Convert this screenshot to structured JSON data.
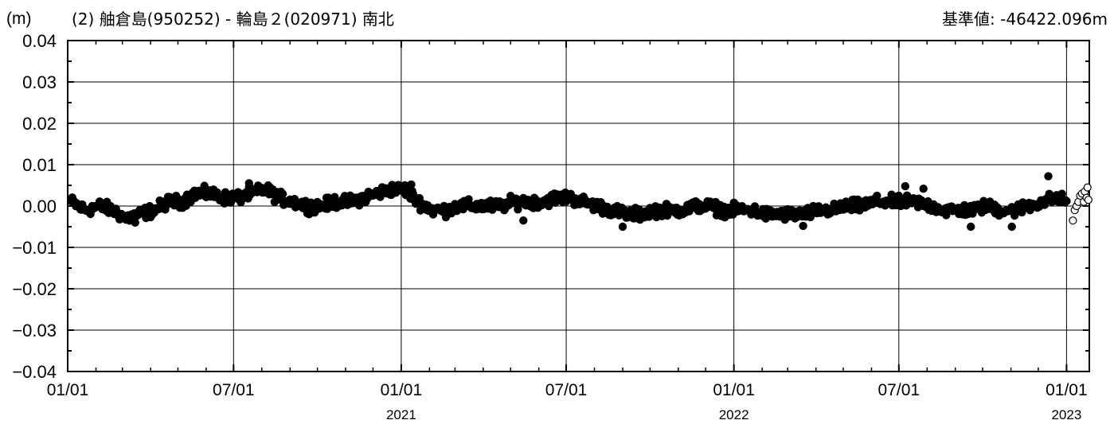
{
  "header": {
    "unit": "(m)",
    "title": "(2) 舳倉島(950252) - 輪島２(020971) 南北",
    "baseline": "基準値: -46422.096m"
  },
  "chart_data": {
    "type": "scatter",
    "title": "(2) 舳倉島(950252) - 輪島２(020971) 南北",
    "ylabel": "(m)",
    "xlim": [
      "2020-01-01",
      "2023-01-26"
    ],
    "ylim": [
      -0.04,
      0.04
    ],
    "yticks": [
      "0.04",
      "0.03",
      "0.02",
      "0.01",
      "0.00",
      "−0.01",
      "−0.02",
      "−0.03",
      "−0.04"
    ],
    "xticks": [
      {
        "date": "2020-01-01",
        "label": "01/01",
        "year": ""
      },
      {
        "date": "2020-07-01",
        "label": "07/01",
        "year": ""
      },
      {
        "date": "2021-01-01",
        "label": "01/01",
        "year": "2021"
      },
      {
        "date": "2021-07-01",
        "label": "07/01",
        "year": ""
      },
      {
        "date": "2022-01-01",
        "label": "01/01",
        "year": "2022"
      },
      {
        "date": "2022-07-01",
        "label": "07/01",
        "year": ""
      },
      {
        "date": "2023-01-01",
        "label": "01/01",
        "year": "2023"
      }
    ],
    "grid": true,
    "series": [
      {
        "style": "filled-circle",
        "description_points": [
          [
            "2020-01-05",
            0.001
          ],
          [
            "2020-01-20",
            -0.001
          ],
          [
            "2020-02-05",
            0.0
          ],
          [
            "2020-02-20",
            -0.001
          ],
          [
            "2020-03-05",
            -0.003
          ],
          [
            "2020-03-20",
            -0.002
          ],
          [
            "2020-04-05",
            -0.001
          ],
          [
            "2020-04-20",
            0.001
          ],
          [
            "2020-05-05",
            0.001
          ],
          [
            "2020-05-20",
            0.003
          ],
          [
            "2020-06-05",
            0.003
          ],
          [
            "2020-06-20",
            0.002
          ],
          [
            "2020-07-05",
            0.002
          ],
          [
            "2020-07-20",
            0.003
          ],
          [
            "2020-08-05",
            0.004
          ],
          [
            "2020-08-20",
            0.002
          ],
          [
            "2020-09-05",
            0.001
          ],
          [
            "2020-09-20",
            0.0
          ],
          [
            "2020-10-05",
            0.0
          ],
          [
            "2020-10-20",
            0.001
          ],
          [
            "2020-11-05",
            0.001
          ],
          [
            "2020-11-20",
            0.002
          ],
          [
            "2020-12-05",
            0.003
          ],
          [
            "2020-12-20",
            0.004
          ],
          [
            "2021-01-05",
            0.004
          ],
          [
            "2021-01-20",
            0.001
          ],
          [
            "2021-02-05",
            -0.001
          ],
          [
            "2021-02-20",
            -0.001
          ],
          [
            "2021-03-05",
            0.0
          ],
          [
            "2021-03-20",
            0.0
          ],
          [
            "2021-04-05",
            0.0
          ],
          [
            "2021-04-20",
            0.0
          ],
          [
            "2021-05-05",
            0.001
          ],
          [
            "2021-05-20",
            0.001
          ],
          [
            "2021-06-05",
            0.001
          ],
          [
            "2021-06-20",
            0.002
          ],
          [
            "2021-07-05",
            0.002
          ],
          [
            "2021-07-20",
            0.001
          ],
          [
            "2021-08-05",
            0.0
          ],
          [
            "2021-08-20",
            -0.001
          ],
          [
            "2021-09-05",
            -0.002
          ],
          [
            "2021-09-20",
            -0.002
          ],
          [
            "2021-10-05",
            -0.001
          ],
          [
            "2021-10-20",
            -0.001
          ],
          [
            "2021-11-05",
            -0.001
          ],
          [
            "2021-11-20",
            0.0
          ],
          [
            "2021-12-05",
            0.0
          ],
          [
            "2021-12-20",
            -0.001
          ],
          [
            "2022-01-05",
            -0.001
          ],
          [
            "2022-01-20",
            -0.001
          ],
          [
            "2022-02-05",
            -0.002
          ],
          [
            "2022-02-20",
            -0.002
          ],
          [
            "2022-03-05",
            -0.002
          ],
          [
            "2022-03-20",
            -0.002
          ],
          [
            "2022-04-05",
            -0.001
          ],
          [
            "2022-04-20",
            -0.001
          ],
          [
            "2022-05-05",
            0.0
          ],
          [
            "2022-05-20",
            0.0
          ],
          [
            "2022-06-05",
            0.001
          ],
          [
            "2022-06-20",
            0.001
          ],
          [
            "2022-07-05",
            0.001
          ],
          [
            "2022-07-20",
            0.001
          ],
          [
            "2022-08-05",
            0.0
          ],
          [
            "2022-08-20",
            -0.001
          ],
          [
            "2022-09-05",
            -0.001
          ],
          [
            "2022-09-20",
            -0.001
          ],
          [
            "2022-10-05",
            0.0
          ],
          [
            "2022-10-20",
            -0.001
          ],
          [
            "2022-11-05",
            -0.001
          ],
          [
            "2022-11-20",
            0.0
          ],
          [
            "2022-12-05",
            0.001
          ],
          [
            "2022-12-20",
            0.002
          ],
          [
            "2023-01-02",
            0.001
          ]
        ],
        "outliers": [
          [
            "2020-07-18",
            0.0055
          ],
          [
            "2020-08-10",
            0.0045
          ],
          [
            "2021-01-12",
            0.0052
          ],
          [
            "2022-07-08",
            0.0048
          ],
          [
            "2022-07-28",
            0.0042
          ],
          [
            "2022-12-12",
            0.0072
          ],
          [
            "2021-09-01",
            -0.005
          ],
          [
            "2022-11-02",
            -0.005
          ],
          [
            "2022-03-18",
            -0.0048
          ],
          [
            "2020-03-15",
            -0.004
          ],
          [
            "2021-05-15",
            -0.0035
          ],
          [
            "2022-09-18",
            -0.005
          ]
        ]
      },
      {
        "style": "open-circle",
        "points": [
          [
            "2023-01-08",
            -0.0035
          ],
          [
            "2023-01-10",
            -0.001
          ],
          [
            "2023-01-12",
            0.0
          ],
          [
            "2023-01-14",
            0.001
          ],
          [
            "2023-01-16",
            0.0025
          ],
          [
            "2023-01-18",
            0.003
          ],
          [
            "2023-01-20",
            0.001
          ],
          [
            "2023-01-21",
            0.0035
          ],
          [
            "2023-01-23",
            0.002
          ],
          [
            "2023-01-24",
            0.0045
          ],
          [
            "2023-01-25",
            0.0015
          ]
        ]
      }
    ]
  }
}
